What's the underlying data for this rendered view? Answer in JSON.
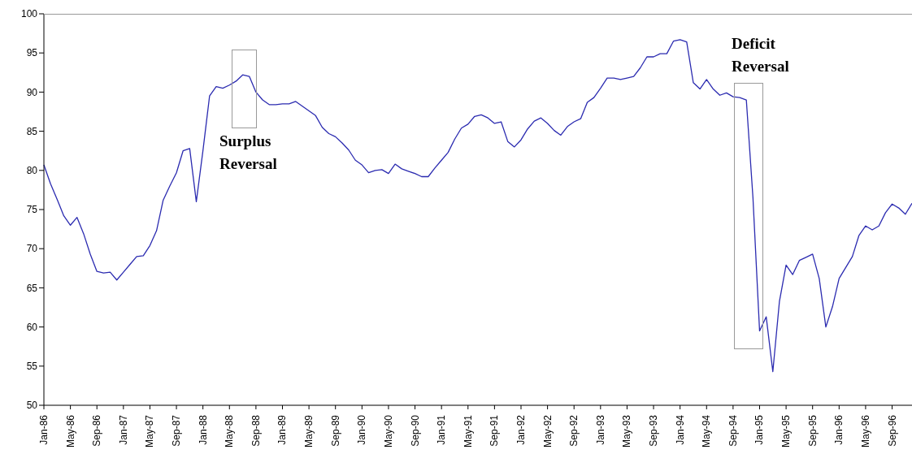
{
  "chart_data": {
    "type": "line",
    "categories": [
      "Jan-86",
      null,
      null,
      null,
      "May-86",
      null,
      null,
      null,
      "Sep-86",
      null,
      null,
      null,
      "Jan-87",
      null,
      null,
      null,
      "May-87",
      null,
      null,
      null,
      "Sep-87",
      null,
      null,
      null,
      "Jan-88",
      null,
      null,
      null,
      "May-88",
      null,
      null,
      null,
      "Sep-88",
      null,
      null,
      null,
      "Jan-89",
      null,
      null,
      null,
      "May-89",
      null,
      null,
      null,
      "Sep-89",
      null,
      null,
      null,
      "Jan-90",
      null,
      null,
      null,
      "May-90",
      null,
      null,
      null,
      "Sep-90",
      null,
      null,
      null,
      "Jan-91",
      null,
      null,
      null,
      "May-91",
      null,
      null,
      null,
      "Sep-91",
      null,
      null,
      null,
      "Jan-92",
      null,
      null,
      null,
      "May-92",
      null,
      null,
      null,
      "Sep-92",
      null,
      null,
      null,
      "Jan-93",
      null,
      null,
      null,
      "May-93",
      null,
      null,
      null,
      "Sep-93",
      null,
      null,
      null,
      "Jan-94",
      null,
      null,
      null,
      "May-94",
      null,
      null,
      null,
      "Sep-94",
      null,
      null,
      null,
      "Jan-95",
      null,
      null,
      null,
      "May-95",
      null,
      null,
      null,
      "Sep-95",
      null,
      null,
      null,
      "Jan-96",
      null,
      null,
      null,
      "May-96",
      null,
      null,
      null,
      "Sep-96",
      null,
      null,
      null
    ],
    "series": [
      {
        "color": "#2b2bb0",
        "values": [
          80.7,
          78.3,
          76.3,
          74.2,
          73.0,
          74.0,
          71.9,
          69.3,
          67.1,
          66.9,
          67.0,
          66.0,
          67.0,
          68.0,
          69.0,
          69.1,
          70.4,
          72.3,
          76.2,
          78.0,
          79.7,
          82.5,
          82.8,
          76.0,
          82.5,
          89.5,
          90.7,
          90.5,
          90.9,
          91.4,
          92.2,
          92.0,
          90.0,
          89.0,
          88.4,
          88.4,
          88.5,
          88.5,
          88.8,
          88.2,
          87.6,
          87.0,
          85.5,
          84.7,
          84.3,
          83.5,
          82.6,
          81.3,
          80.7,
          79.7,
          80.0,
          80.1,
          79.6,
          80.8,
          80.2,
          79.9,
          79.6,
          79.2,
          79.2,
          80.3,
          81.3,
          82.3,
          84.0,
          85.4,
          85.9,
          86.9,
          87.1,
          86.7,
          86.0,
          86.2,
          83.7,
          83.0,
          83.9,
          85.3,
          86.3,
          86.7,
          86.0,
          85.1,
          84.5,
          85.6,
          86.2,
          86.6,
          88.7,
          89.3,
          90.5,
          91.8,
          91.8,
          91.6,
          91.8,
          92.0,
          93.1,
          94.5,
          94.5,
          94.9,
          94.9,
          96.5,
          96.7,
          96.4,
          91.2,
          90.4,
          91.6,
          90.4,
          89.6,
          89.9,
          89.4,
          89.3,
          89.0,
          76.5,
          59.5,
          61.3,
          54.3,
          63.3,
          67.9,
          66.7,
          68.5,
          68.9,
          69.3,
          66.2,
          60.0,
          62.6,
          66.2,
          67.6,
          69.0,
          71.7,
          72.9,
          72.4,
          72.9,
          74.6,
          75.7,
          75.2,
          74.4,
          75.8
        ]
      }
    ],
    "ylim": [
      50,
      100
    ],
    "yticks": [
      50,
      55,
      60,
      65,
      70,
      75,
      80,
      85,
      90,
      95,
      100
    ],
    "marker": "none",
    "line_style": "solid",
    "annotations": [
      "Surplus Reversal",
      "Deficit Reversal"
    ]
  }
}
